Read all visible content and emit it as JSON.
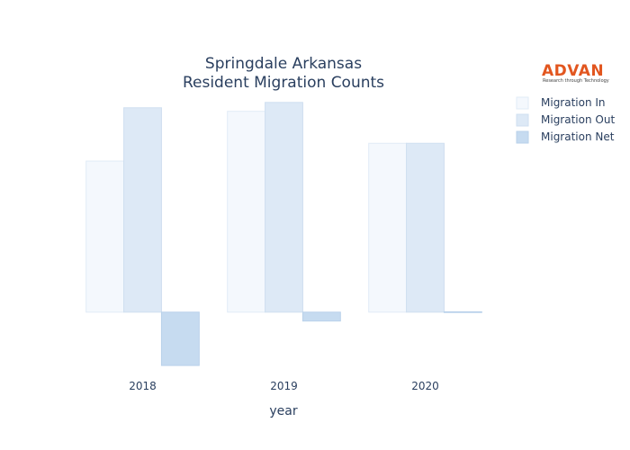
{
  "chart_data": {
    "type": "bar",
    "title_lines": [
      "Springdale Arkansas",
      "Resident Migration Counts"
    ],
    "xlabel": "year",
    "ylabel": "",
    "categories": [
      "2018",
      "2019",
      "2020"
    ],
    "series": [
      {
        "name": "Migration In",
        "values": [
          8.5,
          11.3,
          9.5
        ],
        "color": "#f4f8fd",
        "stroke": "#e1ebf6"
      },
      {
        "name": "Migration Out",
        "values": [
          11.5,
          11.8,
          9.5
        ],
        "color": "#dde9f6",
        "stroke": "#cfdff0"
      },
      {
        "name": "Migration Net",
        "values": [
          -3.0,
          -0.5,
          0
        ],
        "color": "#c6dbf0",
        "stroke": "#b9d1ea"
      }
    ],
    "ylim": [
      -3.3,
      12.5
    ],
    "grid": false,
    "legend_position": "top-right"
  },
  "logo": {
    "word": "ADVAN",
    "tagline": "Research through Technology"
  }
}
